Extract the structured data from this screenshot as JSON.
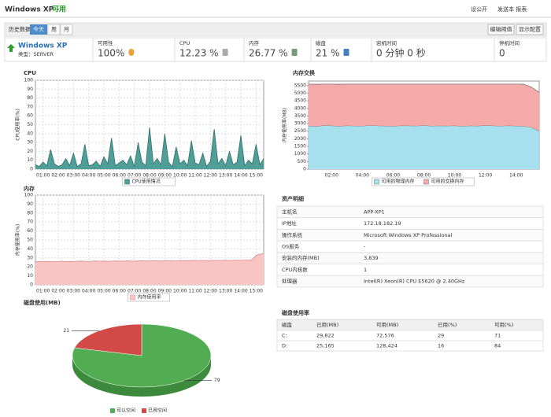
{
  "header": {
    "title": "Windows XP -",
    "status": "可用",
    "links": [
      "设公开",
      "发送本 报表"
    ]
  },
  "toolbar": {
    "label": "历史数据:",
    "tabs": [
      "今天",
      "周",
      "月"
    ],
    "buttons": [
      "编辑阈值",
      "显示配置"
    ]
  },
  "summary": {
    "name": "Windows XP",
    "type": "类型：SERVER",
    "metrics": [
      {
        "label": "可用性",
        "value": "100%"
      },
      {
        "label": "CPU",
        "value": "12.23 %"
      },
      {
        "label": "内存",
        "value": "26.77 %"
      },
      {
        "label": "磁盘",
        "value": "21 %"
      },
      {
        "label": "宕机时间",
        "value": "0 分钟 0 秒"
      },
      {
        "label": "停机时间",
        "value": "0"
      }
    ]
  },
  "chart_data": [
    {
      "type": "area",
      "title": "CPU",
      "y_label": "CPU使用率(%)",
      "categories": [
        null,
        null,
        "01:00",
        null,
        null,
        null,
        "02:00",
        null,
        null,
        null,
        "03:00",
        null,
        null,
        null,
        "04:00",
        null,
        null,
        null,
        "05:00",
        null,
        null,
        null,
        "06:00",
        null,
        null,
        null,
        "07:00",
        null,
        null,
        null,
        "08:00",
        null,
        null,
        null,
        "09:00",
        null,
        null,
        null,
        "10:00",
        null,
        null,
        null,
        "11:00",
        null,
        null,
        null,
        "12:00",
        null,
        null,
        null,
        "13:00",
        null,
        null,
        null,
        "14:00",
        null,
        null,
        null,
        "15:00",
        null,
        null
      ],
      "series": [
        {
          "name": "CPU使用情况",
          "color": "#4f9f98",
          "values": [
            5,
            3,
            8,
            4,
            22,
            6,
            3,
            5,
            12,
            4,
            18,
            3,
            6,
            28,
            4,
            5,
            9,
            3,
            14,
            6,
            35,
            4,
            7,
            10,
            5,
            15,
            3,
            30,
            8,
            4,
            47,
            6,
            12,
            5,
            40,
            8,
            3,
            25,
            6,
            10,
            4,
            32,
            7,
            5,
            18,
            3,
            9,
            45,
            6,
            12,
            4,
            20,
            5,
            8,
            38,
            4,
            10,
            6,
            28,
            5,
            12
          ]
        }
      ],
      "ylim": [
        0,
        100
      ],
      "yticks": [
        0,
        10,
        20,
        30,
        40,
        50,
        60,
        70,
        80,
        90,
        100
      ],
      "grid": true
    },
    {
      "type": "stacked_area",
      "title": "内存交换",
      "y_label": "内存使用率(MB)",
      "categories": [
        null,
        null,
        null,
        "02:00",
        null,
        null,
        null,
        "04:00",
        null,
        null,
        null,
        "06:00",
        null,
        null,
        null,
        "08:00",
        null,
        null,
        null,
        "10:00",
        null,
        null,
        null,
        "12:00",
        null,
        null,
        null,
        "14:00",
        null,
        null,
        null
      ],
      "series": [
        {
          "name": "可用的物理内存",
          "color": "#a6e0ee",
          "values": [
            2850,
            2820,
            2880,
            2860,
            2830,
            2870,
            2850,
            2840,
            2880,
            2860,
            2850,
            2830,
            2870,
            2860,
            2850,
            2880,
            2840,
            2860,
            2850,
            2870,
            2830,
            2860,
            2850,
            2880,
            2860,
            2840,
            2870,
            2850,
            2830,
            2750,
            2500
          ]
        },
        {
          "name": "可用的交换内存",
          "color": "#f5a9a8",
          "values": [
            2750,
            2770,
            2720,
            2740,
            2760,
            2730,
            2750,
            2760,
            2720,
            2740,
            2750,
            2770,
            2730,
            2740,
            2750,
            2720,
            2760,
            2740,
            2750,
            2730,
            2770,
            2740,
            2750,
            2720,
            2740,
            2760,
            2730,
            2750,
            2760,
            2650,
            2550
          ]
        }
      ],
      "ylim": [
        0,
        5800
      ],
      "yticks": [
        0,
        500,
        1000,
        1500,
        2000,
        2500,
        3000,
        3500,
        4000,
        4500,
        5000,
        5500
      ],
      "grid": false
    },
    {
      "type": "area",
      "title": "内存",
      "y_label": "内存使用率(%)",
      "categories": [
        null,
        null,
        "01:00",
        null,
        null,
        null,
        "02:00",
        null,
        null,
        null,
        "03:00",
        null,
        null,
        null,
        "04:00",
        null,
        null,
        null,
        "05:00",
        null,
        null,
        null,
        "06:00",
        null,
        null,
        null,
        "07:00",
        null,
        null,
        null,
        "08:00",
        null,
        null,
        null,
        "09:00",
        null,
        null,
        null,
        "10:00",
        null,
        null,
        null,
        "11:00",
        null,
        null,
        null,
        "12:00",
        null,
        null,
        null,
        "13:00",
        null,
        null,
        null,
        "14:00",
        null,
        null,
        null,
        "15:00",
        null,
        null
      ],
      "series": [
        {
          "name": "内存使用率",
          "color": "#f9c4c4",
          "values": [
            25.6,
            26,
            26,
            26.2,
            26,
            25.8,
            26,
            26.4,
            26,
            26.1,
            26,
            26.3,
            26.5,
            26.2,
            26,
            26.4,
            26.6,
            26.3,
            26.5,
            26.2,
            26.4,
            26.6,
            26.5,
            26.3,
            26.7,
            26.5,
            26.4,
            26.6,
            26.8,
            26.5,
            26.6,
            26.9,
            26.7,
            26.5,
            26.8,
            27,
            26.7,
            26.6,
            26.9,
            27,
            26.8,
            27.1,
            26.9,
            27,
            27.2,
            26.9,
            27.1,
            27.3,
            27,
            27.2,
            27.4,
            27.1,
            27.3,
            27.5,
            27.2,
            27.4,
            27.6,
            28,
            33,
            34,
            35
          ]
        }
      ],
      "ylim": [
        0,
        100
      ],
      "yticks": [
        0,
        10,
        20,
        30,
        40,
        50,
        60,
        70,
        80,
        90,
        100
      ],
      "grid": true
    },
    {
      "type": "pie",
      "title": "磁盘使用(MB)",
      "categories": [
        "可以空间",
        "已用空间"
      ],
      "values": [
        79,
        21
      ],
      "colors": [
        "#52ad52",
        "#d24a48"
      ]
    }
  ],
  "assets": {
    "title": "资产明细",
    "rows": [
      [
        "主机名",
        "APP-XP1"
      ],
      [
        "IP地址",
        "172.18.182.19"
      ],
      [
        "操作系统",
        "Microsoft Windows XP Professional"
      ],
      [
        "OS服务",
        "-"
      ],
      [
        "安装的内存(MB)",
        "3,839"
      ],
      [
        "CPU内核数",
        "1"
      ],
      [
        "处理器",
        "Intel(R) Xeon(R) CPU E5620 @ 2.40GHz"
      ]
    ]
  },
  "disk_table": {
    "title": "磁盘使用率",
    "columns": [
      "磁盘",
      "已用(MB)",
      "可用(MB)",
      "已用(%)",
      "可用(%)"
    ],
    "rows": [
      [
        "C:",
        "29,822",
        "72,576",
        "29",
        "71"
      ],
      [
        "D:",
        "25,165",
        "128,424",
        "16",
        "84"
      ]
    ]
  }
}
